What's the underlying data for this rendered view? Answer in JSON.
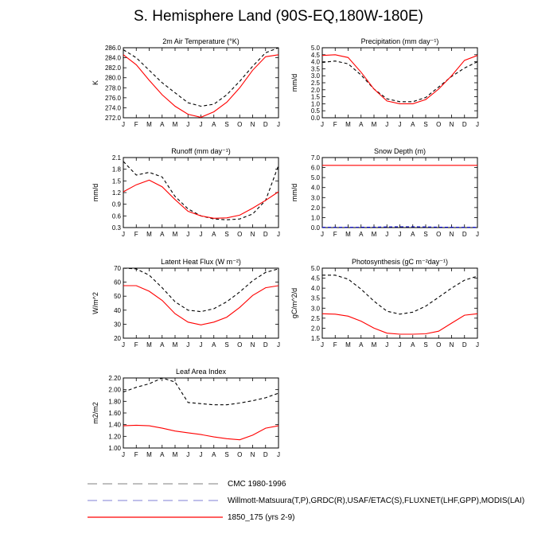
{
  "title": "S. Hemisphere Land (90S-EQ,180W-180E)",
  "months": [
    "J",
    "F",
    "M",
    "A",
    "M",
    "J",
    "J",
    "A",
    "S",
    "O",
    "N",
    "D",
    "J"
  ],
  "colors": {
    "cmc": "#000000",
    "obs": "#0000cc",
    "model": "#ff0000"
  },
  "legend": [
    {
      "label": "CMC 1980-1996",
      "style": "dash-gray"
    },
    {
      "label": "Willmott-Matsuura(T,P),GRDC(R),USAF/ETAC(S),FLUXNET(LHF,GPP),MODIS(LAI)",
      "style": "dash-blue"
    },
    {
      "label": "1850_175 (yrs 2-9)",
      "style": "solid-red"
    }
  ],
  "chart_data": [
    {
      "id": "temp",
      "type": "line",
      "title": "2m Air Temperature (°K)",
      "ylabel": "K",
      "ylim": [
        272,
        286
      ],
      "yticks": [
        272,
        274,
        276,
        278,
        280,
        282,
        284,
        286
      ],
      "yticklabels": [
        "272.0",
        "274.0",
        "276.0",
        "278.0",
        "280.0",
        "282.0",
        "284.0",
        "286.0"
      ],
      "series": [
        {
          "name": "obs",
          "style": "dashed",
          "values": [
            285.6,
            284.0,
            281.5,
            279.0,
            277.0,
            275.0,
            274.3,
            274.7,
            276.6,
            279.3,
            282.3,
            285.0,
            286.0
          ]
        },
        {
          "name": "model",
          "style": "solid",
          "values": [
            284.6,
            282.6,
            279.5,
            276.6,
            274.3,
            272.7,
            272.1,
            273.2,
            275.1,
            278.0,
            281.5,
            284.2,
            284.6
          ]
        }
      ]
    },
    {
      "id": "precip",
      "type": "line",
      "title": "Precipitation (mm day⁻¹)",
      "ylabel": "mm/d",
      "ylim": [
        0,
        5
      ],
      "yticks": [
        0,
        0.5,
        1,
        1.5,
        2,
        2.5,
        3,
        3.5,
        4,
        4.5,
        5
      ],
      "yticklabels": [
        "0.0",
        "0.5",
        "1.0",
        "1.5",
        "2.0",
        "2.5",
        "3.0",
        "3.5",
        "4.0",
        "4.5",
        "5.0"
      ],
      "series": [
        {
          "name": "obs",
          "style": "dashed",
          "values": [
            3.95,
            4.05,
            3.85,
            3.05,
            2.05,
            1.35,
            1.15,
            1.15,
            1.45,
            2.2,
            2.95,
            3.55,
            4.0
          ]
        },
        {
          "name": "model",
          "style": "solid",
          "values": [
            4.45,
            4.5,
            4.3,
            3.25,
            2.05,
            1.2,
            1.0,
            1.0,
            1.3,
            2.05,
            3.0,
            4.1,
            4.45
          ]
        }
      ]
    },
    {
      "id": "runoff",
      "type": "line",
      "title": "Runoff (mm day⁻¹)",
      "ylabel": "mm/d",
      "ylim": [
        0.3,
        2.1
      ],
      "yticks": [
        0.3,
        0.6,
        0.9,
        1.2,
        1.5,
        1.8,
        2.1
      ],
      "yticklabels": [
        "0.3",
        "0.6",
        "0.9",
        "1.2",
        "1.5",
        "1.8",
        "2.1"
      ],
      "series": [
        {
          "name": "obs",
          "style": "dashed",
          "values": [
            2.0,
            1.65,
            1.72,
            1.6,
            1.1,
            0.78,
            0.6,
            0.52,
            0.5,
            0.52,
            0.65,
            1.0,
            1.9
          ]
        },
        {
          "name": "model",
          "style": "solid",
          "values": [
            1.22,
            1.4,
            1.52,
            1.35,
            1.02,
            0.72,
            0.6,
            0.54,
            0.55,
            0.62,
            0.8,
            1.0,
            1.22
          ]
        }
      ]
    },
    {
      "id": "snow",
      "type": "line",
      "title": "Snow Depth (m)",
      "ylabel": "mm/d",
      "ylim": [
        0,
        7
      ],
      "yticks": [
        0,
        1,
        2,
        3,
        4,
        5,
        6,
        7
      ],
      "yticklabels": [
        "0.0",
        "1.0",
        "2.0",
        "3.0",
        "4.0",
        "5.0",
        "6.0",
        "7.0"
      ],
      "series": [
        {
          "name": "obs",
          "style": "dashed-blue",
          "values": [
            0.02,
            0.02,
            0.02,
            0.03,
            0.04,
            0.06,
            0.08,
            0.08,
            0.06,
            0.04,
            0.03,
            0.02,
            0.02
          ]
        },
        {
          "name": "model",
          "style": "solid",
          "values": [
            6.22,
            6.22,
            6.22,
            6.22,
            6.22,
            6.22,
            6.22,
            6.22,
            6.22,
            6.22,
            6.22,
            6.22,
            6.22
          ]
        }
      ]
    },
    {
      "id": "lhf",
      "type": "line",
      "title": "Latent Heat Flux (W m⁻²)",
      "ylabel": "W/m^2",
      "ylim": [
        20,
        70
      ],
      "yticks": [
        20,
        30,
        40,
        50,
        60,
        70
      ],
      "yticklabels": [
        "20",
        "30",
        "40",
        "50",
        "60",
        "70"
      ],
      "series": [
        {
          "name": "obs",
          "style": "dashed",
          "values": [
            70.0,
            69.5,
            65.0,
            56.0,
            46.0,
            40.0,
            39.0,
            41.0,
            46.0,
            53.0,
            61.0,
            67.0,
            69.5
          ]
        },
        {
          "name": "model",
          "style": "solid",
          "values": [
            57.5,
            57.5,
            53.5,
            47.0,
            37.5,
            31.5,
            29.5,
            31.5,
            35.0,
            42.0,
            50.5,
            56.0,
            57.5
          ]
        }
      ]
    },
    {
      "id": "gpp",
      "type": "line",
      "title": "Photosynthesis (gC m⁻²day⁻¹)",
      "ylabel": "gC/m^2/d",
      "ylim": [
        1.5,
        5.0
      ],
      "yticks": [
        1.5,
        2.0,
        2.5,
        3.0,
        3.5,
        4.0,
        4.5,
        5.0
      ],
      "yticklabels": [
        "1.5",
        "2.0",
        "2.5",
        "3.0",
        "3.5",
        "4.0",
        "4.5",
        "5.0"
      ],
      "series": [
        {
          "name": "obs",
          "style": "dashed",
          "values": [
            4.65,
            4.65,
            4.45,
            3.95,
            3.35,
            2.85,
            2.7,
            2.8,
            3.1,
            3.55,
            4.0,
            4.4,
            4.6
          ]
        },
        {
          "name": "model",
          "style": "solid",
          "values": [
            2.72,
            2.7,
            2.6,
            2.35,
            2.0,
            1.75,
            1.7,
            1.7,
            1.72,
            1.85,
            2.25,
            2.65,
            2.72
          ]
        }
      ]
    },
    {
      "id": "lai",
      "type": "line",
      "title": "Leaf Area Index",
      "ylabel": "m2/m2",
      "ylim": [
        1.0,
        2.2
      ],
      "yticks": [
        1.0,
        1.2,
        1.4,
        1.6,
        1.8,
        2.0,
        2.2
      ],
      "yticklabels": [
        "1.00",
        "1.20",
        "1.40",
        "1.60",
        "1.80",
        "2.00",
        "2.20"
      ],
      "series": [
        {
          "name": "obs",
          "style": "dashed",
          "values": [
            1.96,
            2.04,
            2.1,
            2.2,
            2.13,
            1.78,
            1.76,
            1.74,
            1.74,
            1.77,
            1.81,
            1.86,
            1.94
          ]
        },
        {
          "name": "model",
          "style": "solid",
          "values": [
            1.38,
            1.39,
            1.38,
            1.34,
            1.29,
            1.26,
            1.23,
            1.19,
            1.16,
            1.14,
            1.22,
            1.34,
            1.38
          ]
        }
      ]
    }
  ]
}
